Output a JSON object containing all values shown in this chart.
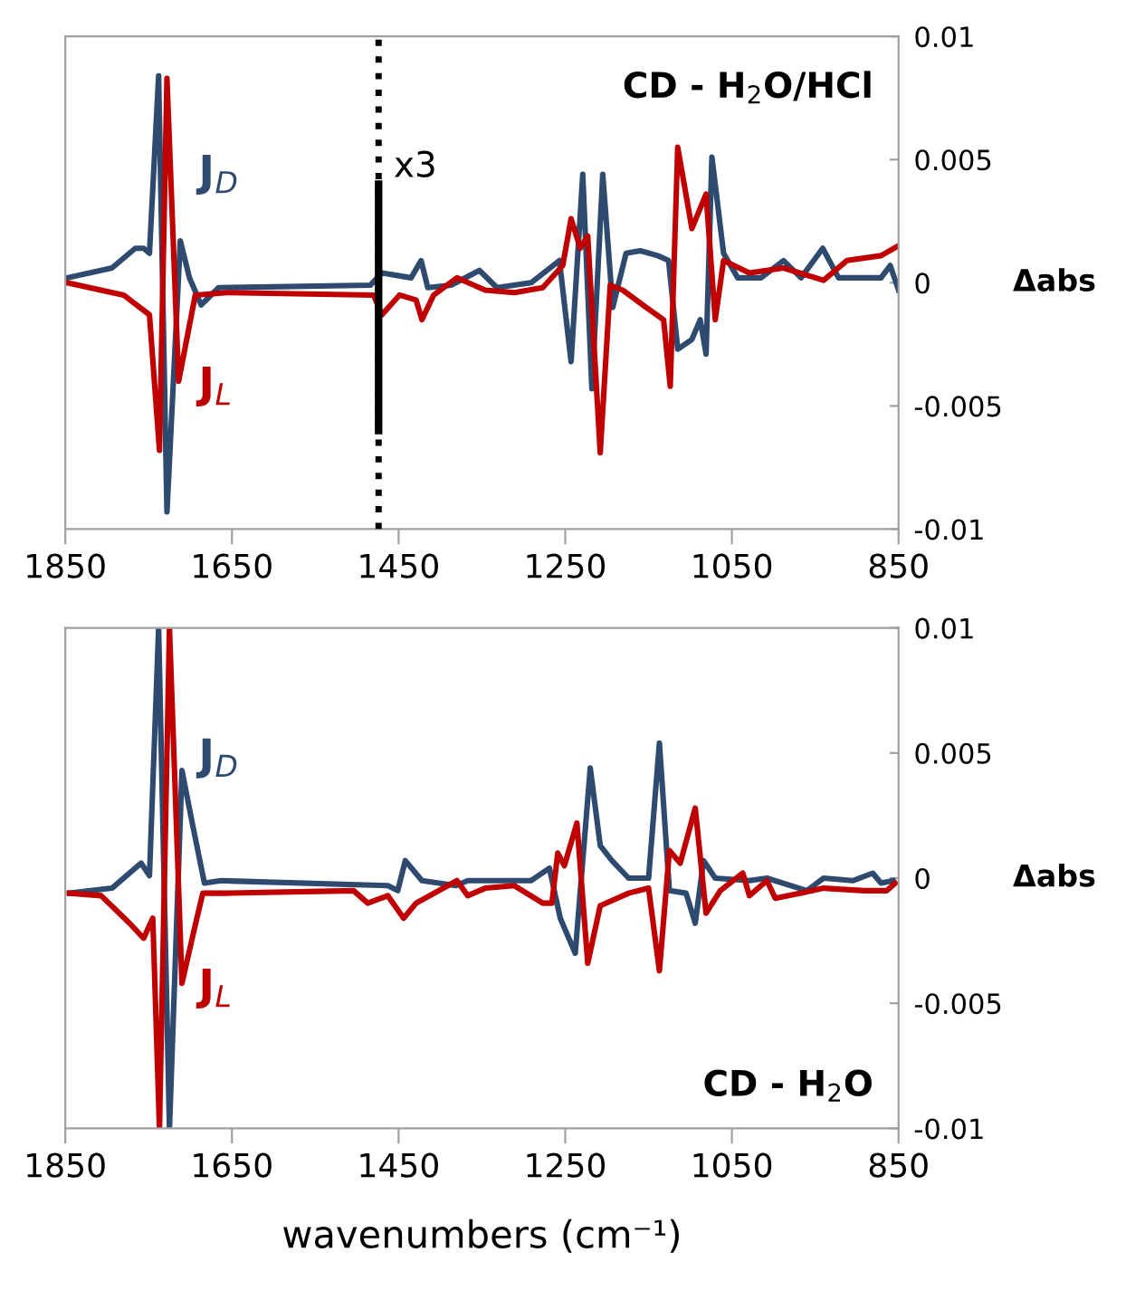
{
  "chart_data": [
    {
      "type": "line",
      "title": "CD - H$_{2}$O/HCl",
      "ylabel": "Δabs",
      "xlim": [
        1850,
        850
      ],
      "xticks": [
        1850,
        1650,
        1450,
        1250,
        1050,
        850
      ],
      "ylim": [
        -0.01,
        0.01
      ],
      "yticks": [
        -0.01,
        -0.005,
        0,
        0.005,
        0.01
      ],
      "grid": false,
      "legend": false,
      "marker": "none",
      "line_style": "solid",
      "ref_lines": [
        {
          "axis": "x",
          "value": 1474,
          "label": "x3",
          "color": "#000000",
          "line_style": "dotted"
        }
      ],
      "series": [
        {
          "name": "J$_{D}$",
          "color": "#2e4a6e",
          "x": [
            1848,
            1794,
            1766,
            1756,
            1749,
            1738,
            1728,
            1712,
            1701,
            1687,
            1666,
            1484,
            1470,
            1435,
            1423,
            1415,
            1387,
            1353,
            1332,
            1291,
            1257,
            1243,
            1229,
            1218,
            1205,
            1193,
            1177,
            1160,
            1139,
            1126,
            1115,
            1098,
            1088,
            1081,
            1074,
            1060,
            1043,
            1015,
            988,
            967,
            941,
            922,
            871,
            860,
            850
          ],
          "values": [
            0.0002,
            0.0006,
            0.0014,
            0.0014,
            0.0012,
            0.0084,
            -0.0093,
            0.0017,
            0.0002,
            -0.0009,
            -0.0002,
            -0.0001,
            0.0004,
            0.0002,
            0.0009,
            -0.0002,
            -0.0001,
            0.0005,
            -0.0002,
            0.0,
            0.0009,
            -0.0032,
            0.0044,
            -0.0043,
            0.0044,
            -0.001,
            0.0012,
            0.0013,
            0.0011,
            0.0009,
            -0.0027,
            -0.0023,
            -0.0015,
            -0.0029,
            0.0051,
            0.0012,
            0.0002,
            0.0002,
            0.0009,
            0.0002,
            0.0014,
            0.0002,
            0.0002,
            0.0007,
            -0.0003
          ]
        },
        {
          "name": "J$_{L}$",
          "color": "#c00000",
          "x": [
            1848,
            1780,
            1749,
            1737,
            1728,
            1714,
            1694,
            1656,
            1480,
            1470,
            1449,
            1429,
            1422,
            1408,
            1380,
            1346,
            1311,
            1277,
            1253,
            1243,
            1232,
            1223,
            1208,
            1196,
            1181,
            1153,
            1132,
            1124,
            1115,
            1098,
            1081,
            1070,
            1060,
            1029,
            988,
            940,
            912,
            871,
            850
          ],
          "values": [
            0.0,
            -0.0005,
            -0.0013,
            -0.0068,
            0.0083,
            -0.004,
            -0.0005,
            -0.0004,
            -0.0005,
            -0.0013,
            -0.0005,
            -0.0007,
            -0.0015,
            -0.0005,
            0.0002,
            -0.0003,
            -0.0004,
            -0.0002,
            0.0007,
            0.0026,
            0.0014,
            0.0019,
            -0.0069,
            -0.0001,
            -0.0003,
            -0.001,
            -0.0015,
            -0.0042,
            0.0055,
            0.0022,
            0.0036,
            -0.0015,
            0.0009,
            0.0004,
            0.0006,
            0.0001,
            0.0009,
            0.0011,
            0.0015
          ]
        }
      ]
    },
    {
      "type": "line",
      "title": "CD - H$_{2}$O",
      "ylabel": "Δabs",
      "xlabel": "wavenumbers (cm⁻¹)",
      "xlim": [
        1850,
        850
      ],
      "xticks": [
        1850,
        1650,
        1450,
        1250,
        1050,
        850
      ],
      "ylim": [
        -0.01,
        0.01
      ],
      "yticks": [
        -0.01,
        -0.005,
        0,
        0.005,
        0.01
      ],
      "grid": false,
      "legend": false,
      "marker": "none",
      "line_style": "solid",
      "series": [
        {
          "name": "J$_{D}$",
          "color": "#2e4a6e",
          "x": [
            1845,
            1794,
            1759,
            1749,
            1738,
            1725,
            1710,
            1697,
            1683,
            1663,
            1463,
            1451,
            1442,
            1422,
            1381,
            1367,
            1311,
            1291,
            1269,
            1256,
            1238,
            1220,
            1208,
            1194,
            1174,
            1150,
            1137,
            1125,
            1105,
            1094,
            1084,
            1070,
            1029,
            1008,
            960,
            940,
            905,
            881,
            871,
            857
          ],
          "values": [
            -0.0006,
            -0.0004,
            0.0006,
            0.0001,
            0.01,
            -0.01,
            0.0043,
            0.0021,
            -0.0002,
            -0.0001,
            -0.0003,
            -0.0005,
            0.0007,
            -0.0001,
            -0.0003,
            -0.0001,
            -0.0001,
            -0.0001,
            0.0004,
            -0.0016,
            -0.003,
            0.0044,
            0.0013,
            0.0007,
            0.0,
            0.0,
            0.0054,
            -0.0005,
            -0.0006,
            -0.0018,
            0.0007,
            0.0,
            -0.0001,
            0.0,
            -0.0005,
            0.0,
            -0.0001,
            0.0002,
            -0.0002,
            -0.0001
          ]
        },
        {
          "name": "J$_{L}$",
          "color": "#c00000",
          "x": [
            1845,
            1807,
            1773,
            1756,
            1745,
            1737,
            1725,
            1710,
            1697,
            1685,
            1656,
            1504,
            1487,
            1463,
            1444,
            1429,
            1380,
            1367,
            1346,
            1311,
            1277,
            1266,
            1259,
            1251,
            1236,
            1223,
            1208,
            1174,
            1150,
            1137,
            1125,
            1112,
            1094,
            1081,
            1064,
            1037,
            1029,
            1008,
            998,
            967,
            940,
            891,
            864,
            854
          ],
          "values": [
            -0.0006,
            -0.0007,
            -0.0018,
            -0.0024,
            -0.0016,
            -0.01,
            0.01,
            -0.0042,
            -0.0023,
            -0.0006,
            -0.0006,
            -0.0005,
            -0.001,
            -0.0007,
            -0.0016,
            -0.001,
            -0.0001,
            -0.0007,
            -0.0004,
            -0.0003,
            -0.001,
            -0.001,
            0.001,
            0.0005,
            0.0022,
            -0.0034,
            -0.0011,
            -0.0006,
            -0.0004,
            -0.0037,
            0.0011,
            0.0006,
            0.0028,
            -0.0014,
            -0.0005,
            0.0002,
            -0.0007,
            -0.0001,
            -0.0008,
            -0.0006,
            -0.0004,
            -0.0005,
            -0.0005,
            -0.0002
          ]
        }
      ]
    }
  ]
}
